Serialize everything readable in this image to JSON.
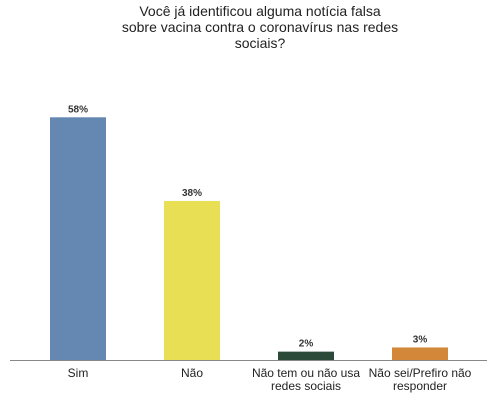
{
  "chart_data": {
    "type": "bar",
    "title_lines": [
      "Você já identificou alguma notícia falsa",
      "sobre vacina contra o coronavírus nas redes",
      "sociais?"
    ],
    "categories": [
      [
        "Sim"
      ],
      [
        "Não"
      ],
      [
        "Não tem ou não usa",
        "redes sociais"
      ],
      [
        "Não sei/Prefiro não",
        "responder"
      ]
    ],
    "values": [
      58,
      38,
      2,
      3
    ],
    "value_labels": [
      "58%",
      "38%",
      "2%",
      "3%"
    ],
    "unit": "%",
    "colors": [
      "#6488b1",
      "#e9df55",
      "#2c4a3a",
      "#d38738"
    ],
    "ylim": [
      0,
      65
    ],
    "grid": false,
    "legend": "none",
    "axis_color": "#888888"
  }
}
